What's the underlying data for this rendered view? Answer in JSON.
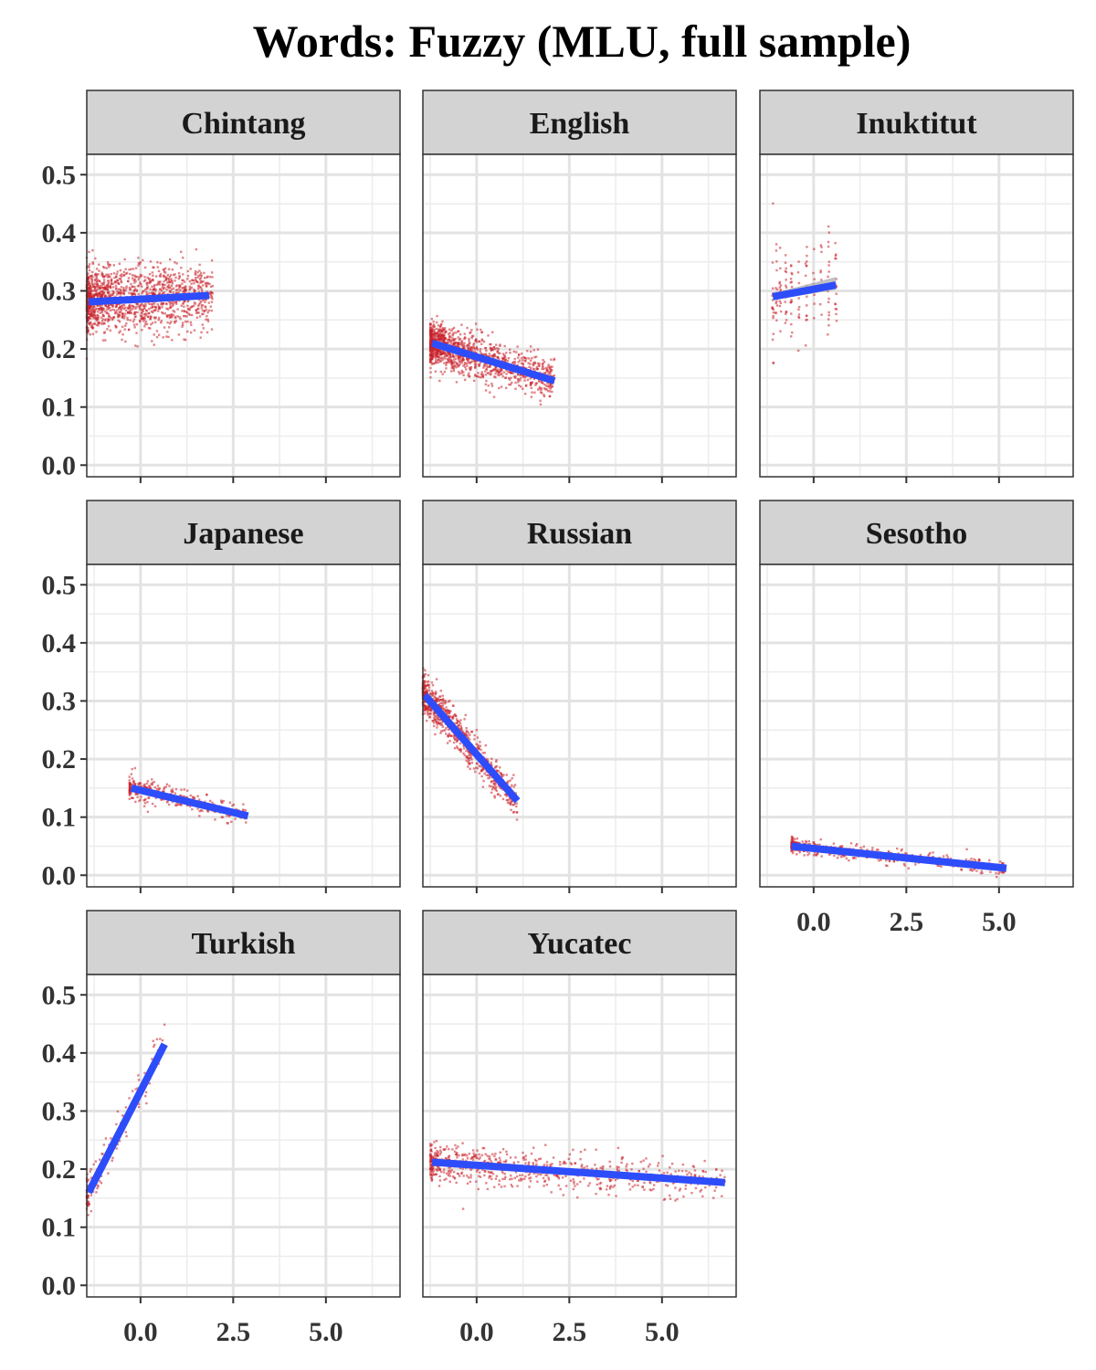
{
  "chart_data": {
    "type": "scatter",
    "title": "Words: Fuzzy (MLU, full sample)",
    "xlabel": "",
    "ylabel": "",
    "xlim": [
      -1.45,
      7.0
    ],
    "ylim": [
      -0.02,
      0.535
    ],
    "x_ticks": [
      0.0,
      2.5,
      5.0
    ],
    "x_tick_labels": [
      "0.0",
      "2.5",
      "5.0"
    ],
    "y_ticks": [
      0.0,
      0.1,
      0.2,
      0.3,
      0.4,
      0.5
    ],
    "y_tick_labels": [
      "0.0",
      "0.1",
      "0.2",
      "0.3",
      "0.4",
      "0.5"
    ],
    "grid": true,
    "point_color": "#c8202a",
    "line_color": "#2e4dfa",
    "ribbon_color": "#b3b3b3",
    "strip_fill": "#d3d3d3",
    "panels": [
      {
        "language": "Chintang",
        "fit": {
          "x0": -1.4,
          "y0": 0.281,
          "x1": 1.85,
          "y1": 0.292
        },
        "points": {
          "x": [
            -1.45,
            1.95
          ],
          "y_spread": 0.028,
          "n": 1400
        }
      },
      {
        "language": "English",
        "fit": {
          "x0": -1.2,
          "y0": 0.21,
          "x1": 2.1,
          "y1": 0.145
        },
        "points": {
          "x": [
            -1.25,
            2.1
          ],
          "y_spread": 0.018,
          "n": 1300
        }
      },
      {
        "language": "Inuktitut",
        "fit": {
          "x0": -1.1,
          "y0": 0.29,
          "x1": 0.6,
          "y1": 0.31
        },
        "points": {
          "x": [
            -1.15,
            0.6
          ],
          "y_spread": 0.045,
          "n": 160
        }
      },
      {
        "language": "Japanese",
        "fit": {
          "x0": -0.25,
          "y0": 0.15,
          "x1": 2.9,
          "y1": 0.102
        },
        "points": {
          "x": [
            -0.3,
            2.9
          ],
          "y_spread": 0.01,
          "n": 300
        }
      },
      {
        "language": "Russian",
        "fit": {
          "x0": -1.4,
          "y0": 0.31,
          "x1": 1.1,
          "y1": 0.128
        },
        "points": {
          "x": [
            -1.45,
            1.1
          ],
          "y_spread": 0.016,
          "n": 800
        }
      },
      {
        "language": "Sesotho",
        "fit": {
          "x0": -0.6,
          "y0": 0.05,
          "x1": 5.2,
          "y1": 0.012
        },
        "points": {
          "x": [
            -0.6,
            5.2
          ],
          "y_spread": 0.006,
          "n": 500
        }
      },
      {
        "language": "Turkish",
        "fit": {
          "x0": -1.4,
          "y0": 0.16,
          "x1": 0.65,
          "y1": 0.415
        },
        "points": {
          "x": [
            -1.45,
            0.65
          ],
          "y_spread": 0.018,
          "n": 150
        }
      },
      {
        "language": "Yucatec",
        "fit": {
          "x0": -1.2,
          "y0": 0.212,
          "x1": 6.7,
          "y1": 0.177
        },
        "points": {
          "x": [
            -1.25,
            6.7
          ],
          "y_spread": 0.016,
          "n": 700
        }
      }
    ]
  }
}
